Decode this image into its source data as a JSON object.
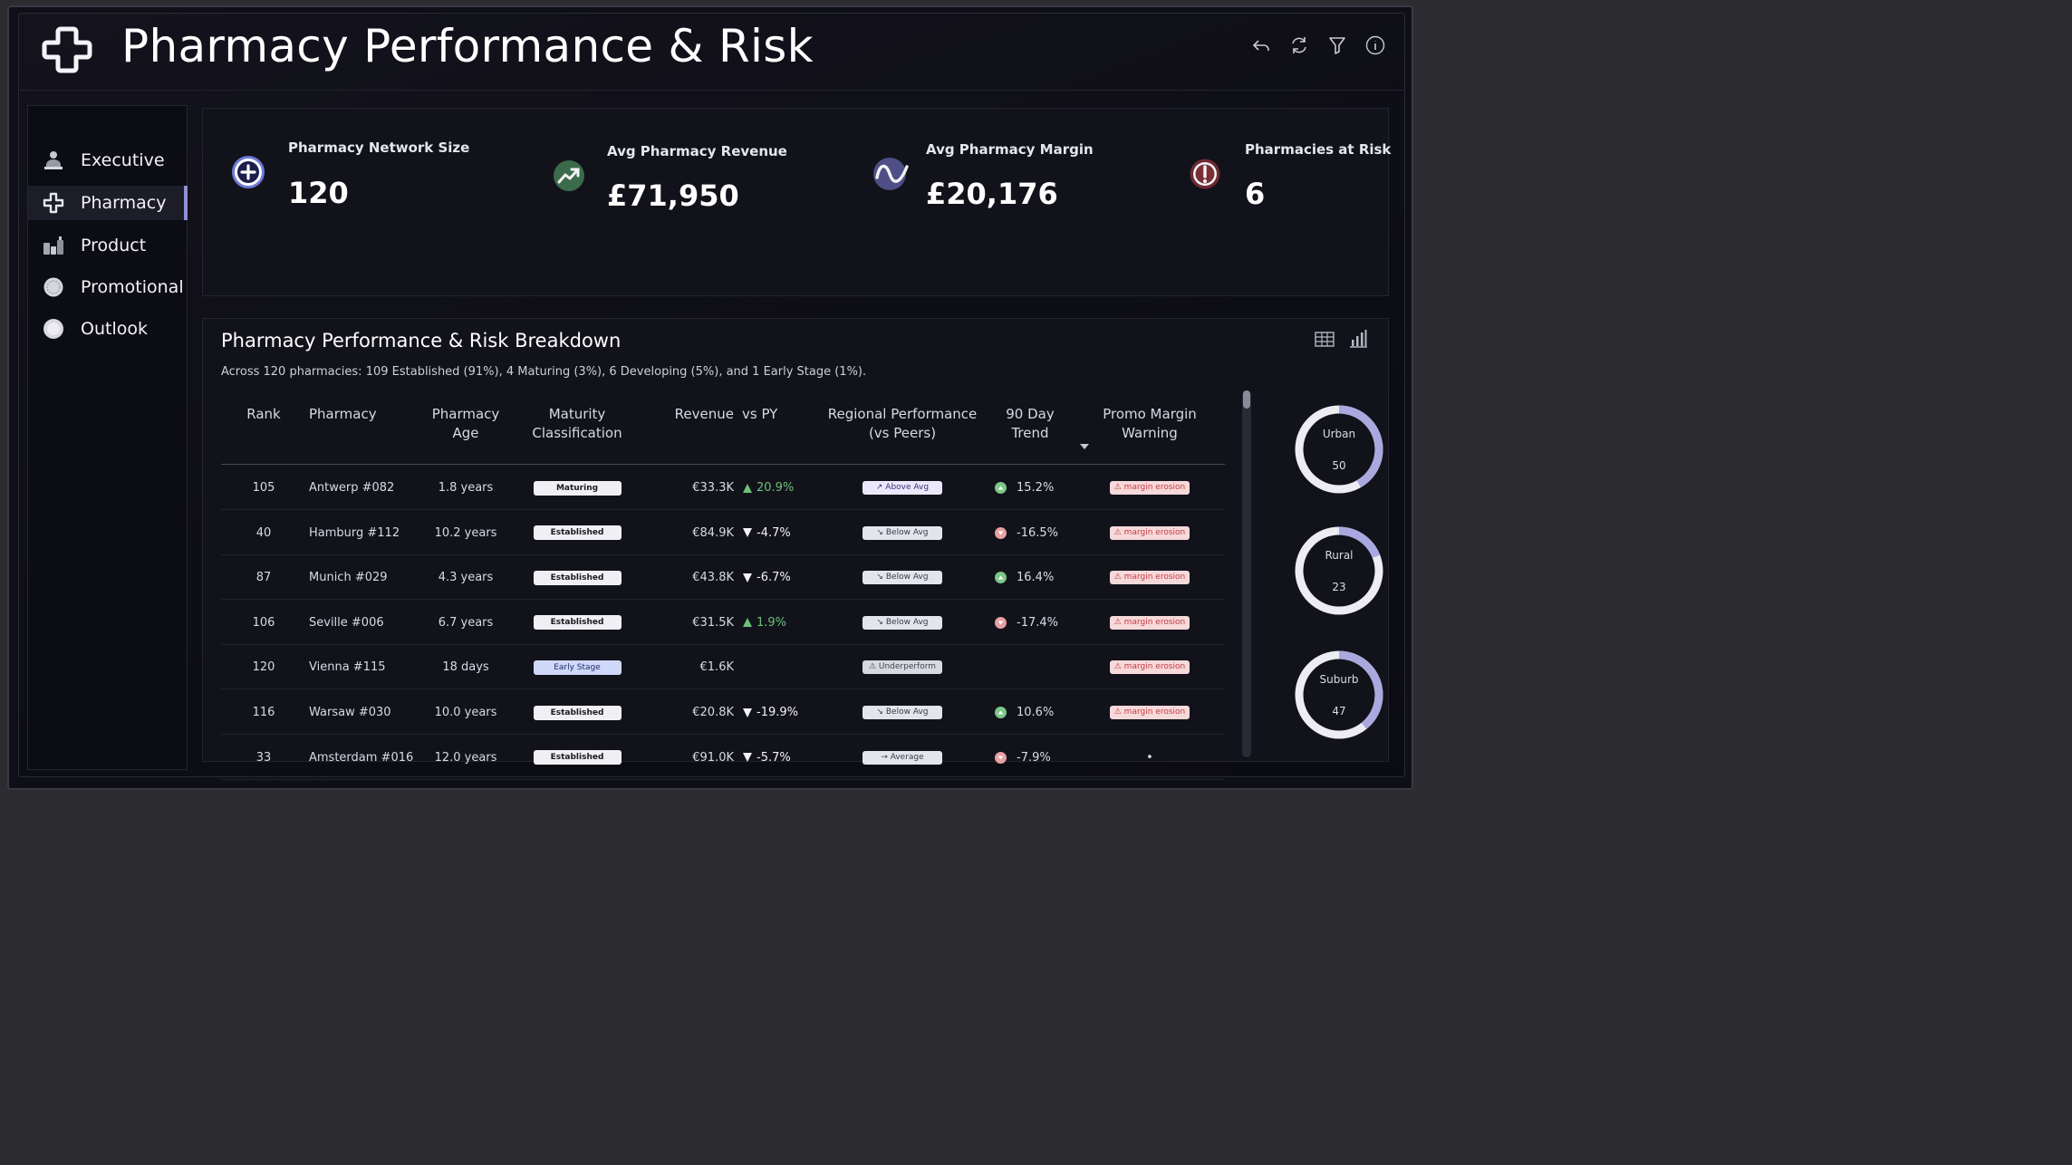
{
  "app": {
    "title": "Pharmacy Performance & Risk"
  },
  "header_icons": [
    "back-icon",
    "refresh-icon",
    "filter-icon",
    "info-icon"
  ],
  "sidebar": {
    "items": [
      {
        "label": "Executive",
        "icon": "executive-icon",
        "active": false
      },
      {
        "label": "Pharmacy",
        "icon": "pharmacy-cross-icon",
        "active": true
      },
      {
        "label": "Product",
        "icon": "product-icon",
        "active": false
      },
      {
        "label": "Promotional",
        "icon": "promotional-icon",
        "active": false
      },
      {
        "label": "Outlook",
        "icon": "outlook-icon",
        "active": false
      }
    ]
  },
  "kpis": [
    {
      "label": "Pharmacy Network Size",
      "value": "120",
      "icon": "plus-circle-icon",
      "color": "#6b7bd6"
    },
    {
      "label": "Avg Pharmacy Revenue",
      "value": "£71,950",
      "icon": "trend-up-icon",
      "color": "#3b6b4a"
    },
    {
      "label": "Avg Pharmacy Margin",
      "value": "£20,176",
      "icon": "wave-icon",
      "color": "#4d4f86"
    },
    {
      "label": "Pharmacies at Risk",
      "value": "6",
      "icon": "alert-icon",
      "color": "#6b2a30"
    }
  ],
  "breakdown": {
    "title": "Pharmacy Performance & Risk Breakdown",
    "subtitle": "Across 120 pharmacies: 109 Established (91%), 4 Maturing (3%), 6 Developing (5%), and 1 Early Stage (1%).",
    "columns": {
      "rank": "Rank",
      "pharmacy": "Pharmacy",
      "age_1": "Pharmacy",
      "age_2": "Age",
      "maturity_1": "Maturity",
      "maturity_2": "Classification",
      "revenue": "Revenue",
      "vs_py": "vs PY",
      "regional_1": "Regional Performance",
      "regional_2": "(vs Peers)",
      "trend_1": "90 Day",
      "trend_2": "Trend",
      "promo_1": "Promo Margin",
      "promo_2": "Warning"
    },
    "rows": [
      {
        "rank": "105",
        "pharmacy": "Antwerp #082",
        "age": "1.8 years",
        "maturity": "Maturing",
        "revenue": "€33.3K",
        "vs_py": "20.9%",
        "vs_dir": "up",
        "regional": "↗ Above Avg",
        "reg_type": "above",
        "trend": "15.2%",
        "trend_dir": "up",
        "warning": "⚠ margin erosion"
      },
      {
        "rank": "40",
        "pharmacy": "Hamburg #112",
        "age": "10.2 years",
        "maturity": "Established",
        "revenue": "€84.9K",
        "vs_py": "-4.7%",
        "vs_dir": "down",
        "regional": "↘ Below Avg",
        "reg_type": "below",
        "trend": "-16.5%",
        "trend_dir": "down",
        "warning": "⚠ margin erosion"
      },
      {
        "rank": "87",
        "pharmacy": "Munich #029",
        "age": "4.3 years",
        "maturity": "Established",
        "revenue": "€43.8K",
        "vs_py": "-6.7%",
        "vs_dir": "down",
        "regional": "↘ Below Avg",
        "reg_type": "below",
        "trend": "16.4%",
        "trend_dir": "up",
        "warning": "⚠ margin erosion"
      },
      {
        "rank": "106",
        "pharmacy": "Seville #006",
        "age": "6.7 years",
        "maturity": "Established",
        "revenue": "€31.5K",
        "vs_py": "1.9%",
        "vs_dir": "up",
        "regional": "↘ Below Avg",
        "reg_type": "below",
        "trend": "-17.4%",
        "trend_dir": "down",
        "warning": "⚠ margin erosion"
      },
      {
        "rank": "120",
        "pharmacy": "Vienna #115",
        "age": "18 days",
        "maturity": "Early Stage",
        "revenue": "€1.6K",
        "vs_py": "",
        "vs_dir": "",
        "regional": "⚠ Underperform",
        "reg_type": "under",
        "trend": "",
        "trend_dir": "",
        "warning": "⚠ margin erosion"
      },
      {
        "rank": "116",
        "pharmacy": "Warsaw #030",
        "age": "10.0 years",
        "maturity": "Established",
        "revenue": "€20.8K",
        "vs_py": "-19.9%",
        "vs_dir": "down",
        "regional": "↘ Below Avg",
        "reg_type": "below",
        "trend": "10.6%",
        "trend_dir": "up",
        "warning": "⚠ margin erosion"
      },
      {
        "rank": "33",
        "pharmacy": "Amsterdam #016",
        "age": "12.0 years",
        "maturity": "Established",
        "revenue": "€91.0K",
        "vs_py": "-5.7%",
        "vs_dir": "down",
        "regional": "→ Average",
        "reg_type": "below",
        "trend": "-7.9%",
        "trend_dir": "down",
        "warning": "•"
      }
    ]
  },
  "segments": [
    {
      "label": "Urban",
      "value": "50",
      "share": 0.4167
    },
    {
      "label": "Rural",
      "value": "23",
      "share": 0.1917
    },
    {
      "label": "Suburb",
      "value": "47",
      "share": 0.3917
    }
  ],
  "colors": {
    "accent": "#8f8fd6",
    "donut_track": "#ececf2",
    "donut_fill": "#a9a9e0"
  }
}
